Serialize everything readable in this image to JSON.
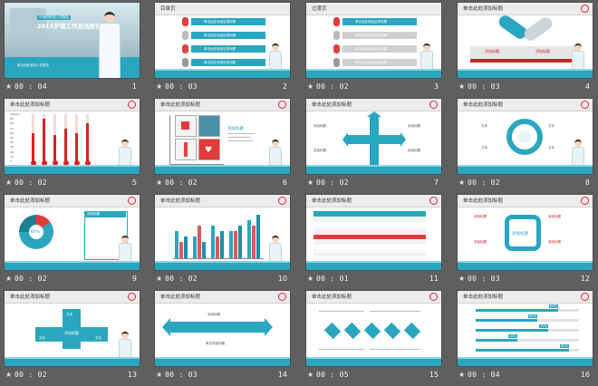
{
  "window": {
    "background": "#5f5f5f"
  },
  "colors": {
    "accent": "#2aa6bf",
    "alert": "#e23b3b"
  },
  "slides": [
    {
      "number": "1",
      "time": "00 : 04",
      "title": "201X护理工作总结报告PPT",
      "subtitle": "XX医院科室人员报告",
      "footer_text": "单击此处添加人员报告"
    },
    {
      "number": "2",
      "time": "00 : 03",
      "title": "目录页",
      "items": [
        "单击此处添加目录标题",
        "单击此处添加目录标题",
        "单击此处添加目录标题",
        "单击此处添加目录标题"
      ]
    },
    {
      "number": "3",
      "time": "00 : 02",
      "title": "过渡页",
      "items": [
        "单击此处添加目录标题",
        "单击此处添加目录标题",
        "单击此处添加目录标题",
        "单击此处添加目录标题"
      ]
    },
    {
      "number": "4",
      "time": "00 : 03",
      "title": "单击此处添加标题",
      "labels": [
        "添加标题",
        "添加标题"
      ]
    },
    {
      "number": "5",
      "time": "00 : 02",
      "title": "单击此处添加标题",
      "ylabels": [
        "100(%)",
        "90",
        "80",
        "70",
        "60",
        "50",
        "40",
        "30",
        "20",
        "10",
        "0"
      ],
      "xlabels": [
        "文本",
        "文本",
        "文本",
        "文本",
        "文本",
        "文本"
      ]
    },
    {
      "number": "6",
      "time": "00 : 02",
      "title": "单击此处添加标题",
      "heading": "添加标题"
    },
    {
      "number": "7",
      "time": "00 : 02",
      "title": "单击此处添加标题",
      "labels": [
        "添加标题",
        "添加标题",
        "添加标题",
        "添加标题"
      ]
    },
    {
      "number": "8",
      "time": "00 : 02",
      "title": "单击此处添加标题",
      "labels": [
        "文本",
        "文本",
        "文本",
        "文本"
      ]
    },
    {
      "number": "9",
      "time": "00 : 02",
      "title": "单击此处添加标题",
      "center_label": "60%",
      "panel_title": "添加标题"
    },
    {
      "number": "10",
      "time": "00 : 02",
      "title": "单击此处添加标题",
      "categories": [
        "类别 1",
        "类别 2",
        "类别 3",
        "类别 4",
        "类别 5"
      ],
      "series": [
        {
          "values": [
            5,
            4,
            6,
            5,
            7
          ]
        },
        {
          "values": [
            3,
            6,
            4,
            5,
            6
          ]
        },
        {
          "values": [
            4,
            3,
            5,
            6,
            8
          ]
        }
      ]
    },
    {
      "number": "11",
      "time": "00 : 01",
      "title": "单击此处添加标题"
    },
    {
      "number": "12",
      "time": "00 : 03",
      "title": "单击此处添加标题",
      "labels": [
        "添加标题",
        "添加标题",
        "添加标题",
        "添加标题"
      ],
      "center": "添加标题"
    },
    {
      "number": "13",
      "time": "00 : 02",
      "title": "单击此处添加标题",
      "labels": [
        "文本",
        "文本",
        "文本"
      ],
      "center": "添加标题"
    },
    {
      "number": "14",
      "time": "00 : 03",
      "title": "单击此处添加标题",
      "labels": [
        "添加标题",
        "单击添加标题"
      ]
    },
    {
      "number": "15",
      "time": "00 : 05",
      "title": "单击此处添加标题"
    },
    {
      "number": "16",
      "time": "00 : 04",
      "title": "单击此处添加标题",
      "percents": [
        "80%",
        "60%",
        "70%",
        "40%",
        "90%"
      ]
    }
  ]
}
